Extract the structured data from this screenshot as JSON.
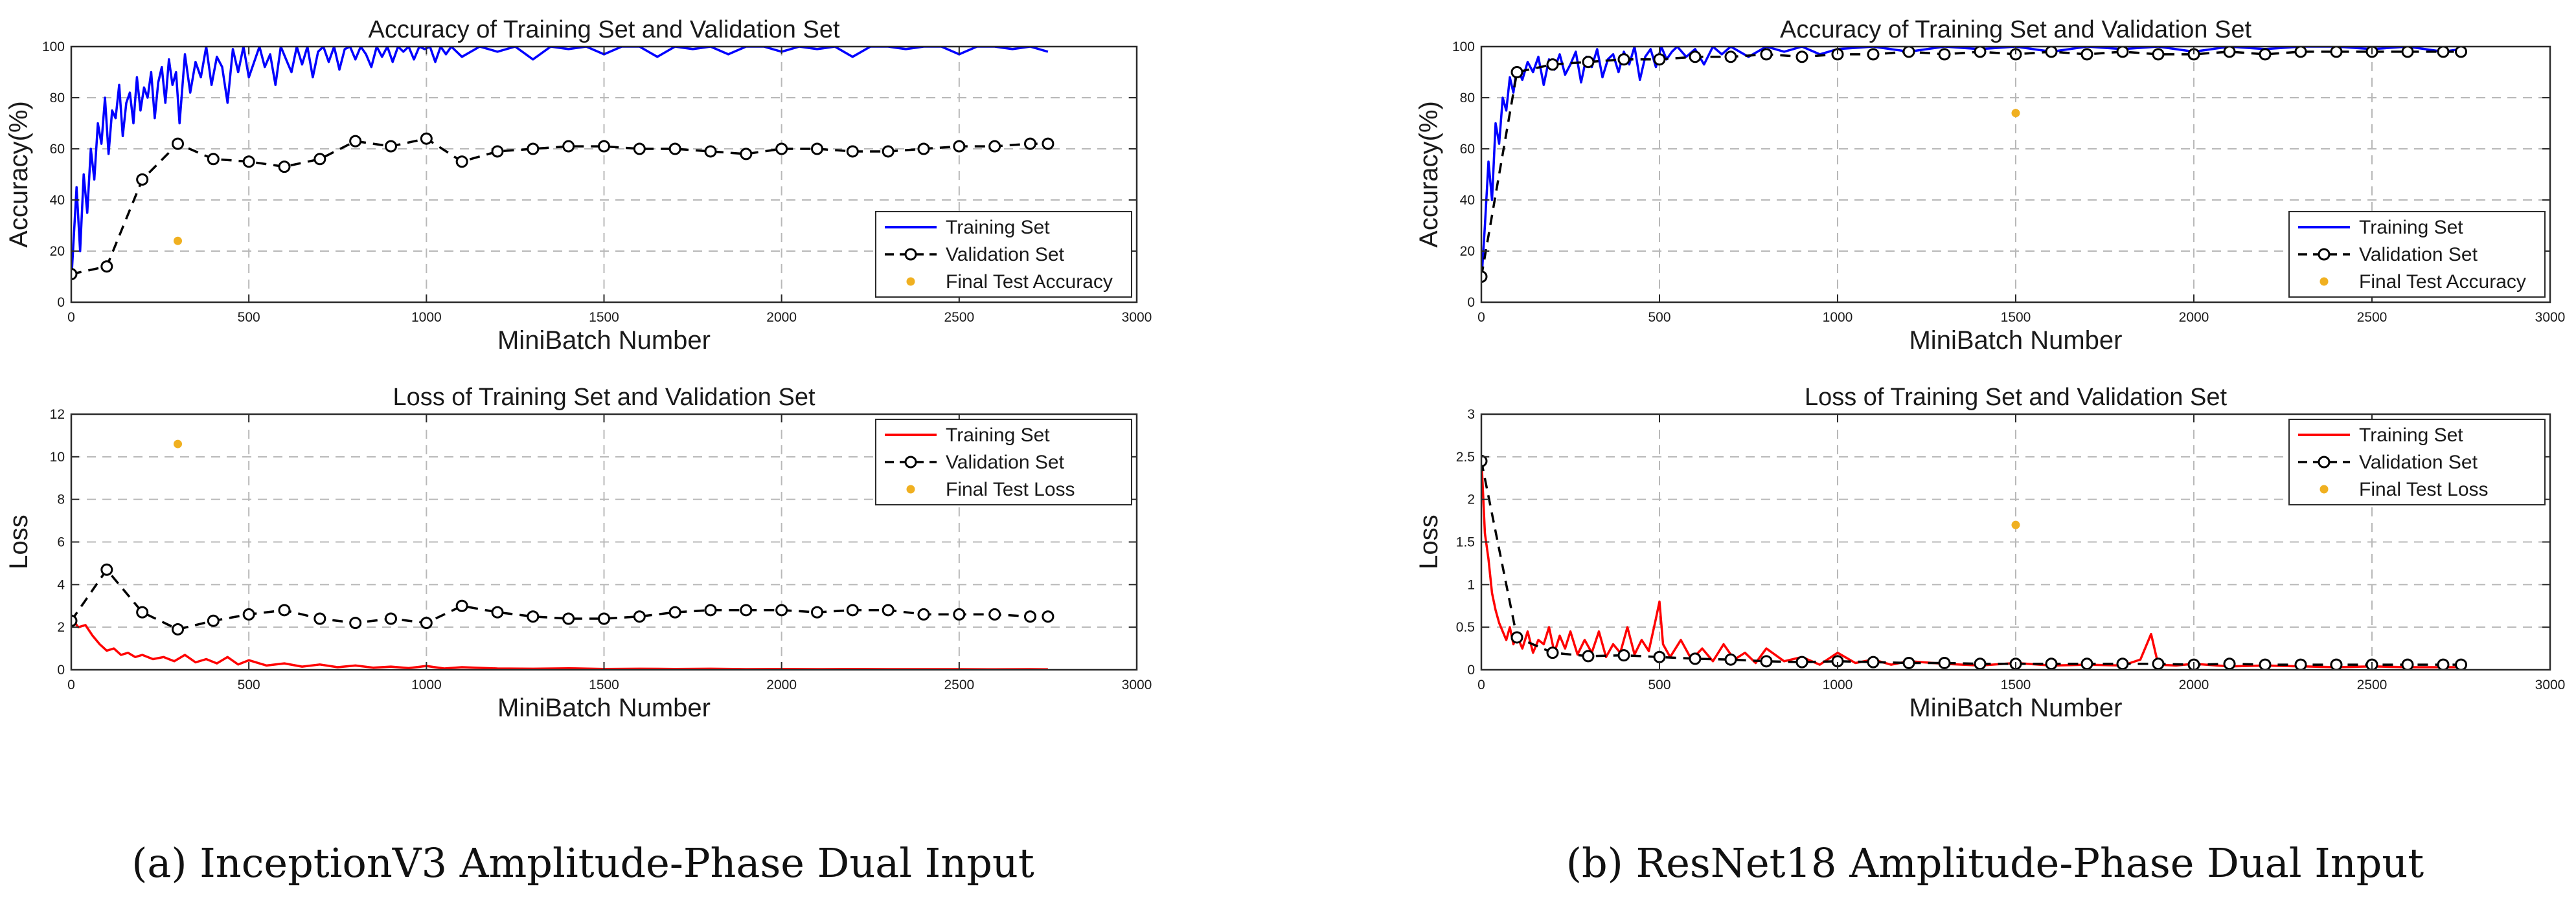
{
  "chart_data": [
    {
      "type": "line",
      "title": "Accuracy of Training Set and Validation Set",
      "xlabel": "MiniBatch Number",
      "ylabel": "Accuracy(%)",
      "xlim": [
        0,
        3000
      ],
      "ylim": [
        0,
        100
      ],
      "xticks": [
        0,
        500,
        1000,
        1500,
        2000,
        2500,
        3000
      ],
      "yticks": [
        0,
        20,
        40,
        60,
        80,
        100
      ],
      "grid": true,
      "legend_position": "bottom-right",
      "series": [
        {
          "name": "Training Set",
          "style": "solid",
          "color": "#0000ff",
          "x": [
            1,
            15,
            25,
            35,
            45,
            55,
            65,
            75,
            85,
            95,
            105,
            115,
            125,
            135,
            145,
            155,
            165,
            175,
            185,
            195,
            205,
            215,
            225,
            235,
            245,
            255,
            265,
            275,
            285,
            295,
            305,
            320,
            335,
            350,
            365,
            380,
            395,
            410,
            425,
            440,
            455,
            470,
            485,
            500,
            515,
            530,
            545,
            560,
            575,
            590,
            605,
            620,
            635,
            650,
            665,
            680,
            695,
            710,
            725,
            740,
            755,
            770,
            785,
            800,
            815,
            830,
            845,
            860,
            875,
            890,
            905,
            920,
            935,
            950,
            965,
            980,
            995,
            1010,
            1025,
            1040,
            1055,
            1070,
            1100,
            1150,
            1200,
            1250,
            1300,
            1350,
            1400,
            1450,
            1500,
            1550,
            1600,
            1650,
            1700,
            1750,
            1800,
            1850,
            1900,
            1950,
            2000,
            2050,
            2100,
            2150,
            2200,
            2250,
            2300,
            2350,
            2400,
            2450,
            2500,
            2550,
            2600,
            2650,
            2700,
            2750
          ],
          "y": [
            10,
            45,
            20,
            50,
            35,
            60,
            48,
            70,
            62,
            80,
            58,
            75,
            72,
            85,
            65,
            78,
            82,
            70,
            88,
            75,
            84,
            80,
            90,
            72,
            86,
            92,
            78,
            95,
            85,
            90,
            70,
            97,
            82,
            94,
            88,
            100,
            85,
            96,
            92,
            78,
            99,
            90,
            100,
            88,
            94,
            100,
            92,
            97,
            85,
            100,
            95,
            90,
            100,
            93,
            100,
            88,
            98,
            100,
            94,
            100,
            91,
            99,
            100,
            95,
            100,
            97,
            92,
            100,
            96,
            100,
            94,
            100,
            98,
            100,
            95,
            100,
            99,
            100,
            94,
            100,
            97,
            100,
            96,
            100,
            98,
            100,
            95,
            100,
            99,
            100,
            97,
            100,
            100,
            96,
            100,
            99,
            100,
            97,
            100,
            100,
            98,
            100,
            99,
            100,
            96,
            100,
            100,
            99,
            100,
            100,
            97,
            100,
            100,
            99,
            100,
            98
          ]
        },
        {
          "name": "Validation Set",
          "style": "dashed-circle",
          "color": "#000000",
          "x": [
            0,
            100,
            200,
            300,
            400,
            500,
            600,
            700,
            800,
            900,
            1000,
            1100,
            1200,
            1300,
            1400,
            1500,
            1600,
            1700,
            1800,
            1900,
            2000,
            2100,
            2200,
            2300,
            2400,
            2500,
            2600,
            2700,
            2750
          ],
          "y": [
            11,
            14,
            48,
            62,
            56,
            55,
            53,
            56,
            63,
            61,
            64,
            55,
            59,
            60,
            61,
            61,
            60,
            60,
            59,
            58,
            60,
            60,
            59,
            59,
            60,
            61,
            61,
            62,
            62
          ]
        },
        {
          "name": "Final Test Accuracy",
          "style": "point",
          "color": "#f0b020",
          "x": [
            300
          ],
          "y": [
            24
          ]
        }
      ]
    },
    {
      "type": "line",
      "title": "Loss of Training Set and Validation Set",
      "xlabel": "MiniBatch Number",
      "ylabel": "Loss",
      "xlim": [
        0,
        3000
      ],
      "ylim": [
        0,
        12
      ],
      "xticks": [
        0,
        500,
        1000,
        1500,
        2000,
        2500,
        3000
      ],
      "yticks": [
        0,
        2,
        4,
        6,
        8,
        10,
        12
      ],
      "grid": true,
      "legend_position": "top-right",
      "series": [
        {
          "name": "Training Set",
          "style": "solid",
          "color": "#ff0000",
          "x": [
            1,
            20,
            40,
            60,
            80,
            100,
            120,
            140,
            160,
            180,
            200,
            230,
            260,
            290,
            320,
            350,
            380,
            410,
            440,
            470,
            500,
            550,
            600,
            650,
            700,
            750,
            800,
            850,
            900,
            950,
            1000,
            1050,
            1100,
            1200,
            1300,
            1400,
            1500,
            1600,
            1700,
            1800,
            1900,
            2000,
            2100,
            2200,
            2300,
            2400,
            2500,
            2600,
            2700,
            2750
          ],
          "y": [
            2.4,
            2.0,
            2.1,
            1.6,
            1.2,
            0.9,
            1.0,
            0.7,
            0.8,
            0.6,
            0.7,
            0.5,
            0.6,
            0.4,
            0.7,
            0.35,
            0.5,
            0.3,
            0.6,
            0.25,
            0.45,
            0.2,
            0.3,
            0.15,
            0.25,
            0.12,
            0.2,
            0.1,
            0.15,
            0.08,
            0.18,
            0.06,
            0.12,
            0.06,
            0.05,
            0.07,
            0.04,
            0.05,
            0.04,
            0.05,
            0.03,
            0.04,
            0.03,
            0.04,
            0.03,
            0.03,
            0.03,
            0.02,
            0.03,
            0.02
          ]
        },
        {
          "name": "Validation Set",
          "style": "dashed-circle",
          "color": "#000000",
          "x": [
            0,
            100,
            200,
            300,
            400,
            500,
            600,
            700,
            800,
            900,
            1000,
            1100,
            1200,
            1300,
            1400,
            1500,
            1600,
            1700,
            1800,
            1900,
            2000,
            2100,
            2200,
            2300,
            2400,
            2500,
            2600,
            2700,
            2750
          ],
          "y": [
            2.3,
            4.7,
            2.7,
            1.9,
            2.3,
            2.6,
            2.8,
            2.4,
            2.2,
            2.4,
            2.2,
            3.0,
            2.7,
            2.5,
            2.4,
            2.4,
            2.5,
            2.7,
            2.8,
            2.8,
            2.8,
            2.7,
            2.8,
            2.8,
            2.6,
            2.6,
            2.6,
            2.5,
            2.5
          ]
        },
        {
          "name": "Final Test Loss",
          "style": "point",
          "color": "#f0b020",
          "x": [
            300
          ],
          "y": [
            10.6
          ]
        }
      ]
    },
    {
      "type": "line",
      "title": "Accuracy of Training Set and Validation Set",
      "xlabel": "MiniBatch Number",
      "ylabel": "Accuracy(%)",
      "xlim": [
        0,
        3000
      ],
      "ylim": [
        0,
        100
      ],
      "xticks": [
        0,
        500,
        1000,
        1500,
        2000,
        2500,
        3000
      ],
      "yticks": [
        0,
        20,
        40,
        60,
        80,
        100
      ],
      "grid": true,
      "legend_position": "bottom-right",
      "series": [
        {
          "name": "Training Set",
          "style": "solid",
          "color": "#0000ff",
          "x": [
            1,
            10,
            20,
            30,
            40,
            50,
            60,
            70,
            80,
            90,
            100,
            115,
            130,
            145,
            160,
            175,
            190,
            205,
            220,
            235,
            250,
            265,
            280,
            295,
            310,
            325,
            340,
            355,
            370,
            385,
            400,
            415,
            430,
            445,
            460,
            475,
            490,
            505,
            520,
            535,
            550,
            575,
            600,
            625,
            650,
            675,
            700,
            750,
            800,
            850,
            900,
            950,
            1000,
            1100,
            1200,
            1300,
            1400,
            1500,
            1600,
            1700,
            1800,
            1900,
            2000,
            2100,
            2200,
            2300,
            2400,
            2500,
            2600,
            2700,
            2750
          ],
          "y": [
            10,
            30,
            55,
            40,
            70,
            62,
            80,
            75,
            88,
            82,
            92,
            87,
            94,
            90,
            96,
            85,
            95,
            91,
            97,
            89,
            93,
            98,
            86,
            96,
            92,
            99,
            88,
            95,
            97,
            90,
            98,
            93,
            100,
            87,
            96,
            99,
            92,
            100,
            95,
            98,
            100,
            96,
            99,
            93,
            100,
            97,
            100,
            96,
            100,
            98,
            100,
            97,
            99,
            100,
            98,
            100,
            99,
            100,
            98,
            100,
            99,
            100,
            98,
            100,
            99,
            100,
            100,
            99,
            100,
            98,
            99
          ]
        },
        {
          "name": "Validation Set",
          "style": "dashed-circle",
          "color": "#000000",
          "x": [
            0,
            100,
            200,
            300,
            400,
            500,
            600,
            700,
            800,
            900,
            1000,
            1100,
            1200,
            1300,
            1400,
            1500,
            1600,
            1700,
            1800,
            1900,
            2000,
            2100,
            2200,
            2300,
            2400,
            2500,
            2600,
            2700,
            2750
          ],
          "y": [
            10,
            90,
            93,
            94,
            95,
            95,
            96,
            96,
            97,
            96,
            97,
            97,
            98,
            97,
            98,
            97,
            98,
            97,
            98,
            97,
            97,
            98,
            97,
            98,
            98,
            98,
            98,
            98,
            98
          ]
        },
        {
          "name": "Final Test Accuracy",
          "style": "point",
          "color": "#f0b020",
          "x": [
            1500
          ],
          "y": [
            74
          ]
        }
      ]
    },
    {
      "type": "line",
      "title": "Loss of Training Set and Validation Set",
      "xlabel": "MiniBatch Number",
      "ylabel": "Loss",
      "xlim": [
        0,
        3000
      ],
      "ylim": [
        0,
        3
      ],
      "xticks": [
        0,
        500,
        1000,
        1500,
        2000,
        2500,
        3000
      ],
      "yticks": [
        0,
        0.5,
        1,
        1.5,
        2,
        2.5,
        3
      ],
      "ytick_labels": [
        "0",
        "0.5",
        "1",
        "1.5",
        "2",
        "2.5",
        "3"
      ],
      "grid": true,
      "legend_position": "top-right",
      "series": [
        {
          "name": "Training Set",
          "style": "solid",
          "color": "#ff0000",
          "x": [
            1,
            10,
            20,
            30,
            40,
            50,
            60,
            70,
            80,
            90,
            100,
            115,
            130,
            145,
            160,
            175,
            190,
            205,
            220,
            235,
            250,
            270,
            290,
            310,
            330,
            350,
            370,
            390,
            410,
            430,
            450,
            470,
            490,
            500,
            510,
            530,
            560,
            590,
            620,
            650,
            680,
            710,
            740,
            770,
            800,
            850,
            900,
            950,
            1000,
            1050,
            1100,
            1150,
            1200,
            1300,
            1400,
            1500,
            1600,
            1700,
            1800,
            1850,
            1880,
            1900,
            1950,
            2000,
            2100,
            2200,
            2300,
            2400,
            2500,
            2600,
            2700,
            2750
          ],
          "y": [
            2.4,
            1.6,
            1.3,
            0.9,
            0.7,
            0.55,
            0.45,
            0.35,
            0.5,
            0.3,
            0.4,
            0.25,
            0.45,
            0.2,
            0.35,
            0.3,
            0.5,
            0.2,
            0.4,
            0.25,
            0.45,
            0.18,
            0.35,
            0.2,
            0.45,
            0.15,
            0.3,
            0.2,
            0.5,
            0.18,
            0.35,
            0.22,
            0.6,
            0.8,
            0.3,
            0.15,
            0.35,
            0.12,
            0.25,
            0.1,
            0.3,
            0.12,
            0.2,
            0.08,
            0.25,
            0.1,
            0.15,
            0.06,
            0.2,
            0.08,
            0.12,
            0.06,
            0.1,
            0.07,
            0.05,
            0.08,
            0.05,
            0.06,
            0.05,
            0.12,
            0.42,
            0.06,
            0.05,
            0.07,
            0.04,
            0.05,
            0.04,
            0.03,
            0.04,
            0.03,
            0.03,
            0.03
          ]
        },
        {
          "name": "Validation Set",
          "style": "dashed-circle",
          "color": "#000000",
          "x": [
            0,
            100,
            200,
            300,
            400,
            500,
            600,
            700,
            800,
            900,
            1000,
            1100,
            1200,
            1300,
            1400,
            1500,
            1600,
            1700,
            1800,
            1900,
            2000,
            2100,
            2200,
            2300,
            2400,
            2500,
            2600,
            2700,
            2750
          ],
          "y": [
            2.45,
            0.38,
            0.2,
            0.16,
            0.17,
            0.15,
            0.13,
            0.12,
            0.1,
            0.09,
            0.1,
            0.09,
            0.08,
            0.08,
            0.07,
            0.07,
            0.07,
            0.07,
            0.07,
            0.07,
            0.06,
            0.07,
            0.06,
            0.06,
            0.06,
            0.06,
            0.06,
            0.06,
            0.06
          ]
        },
        {
          "name": "Final Test Loss",
          "style": "point",
          "color": "#f0b020",
          "x": [
            1500
          ],
          "y": [
            1.7
          ]
        }
      ]
    }
  ],
  "captions": [
    "(a) InceptionV3 Amplitude-Phase Dual Input",
    "(b) ResNet18 Amplitude-Phase Dual Input"
  ]
}
